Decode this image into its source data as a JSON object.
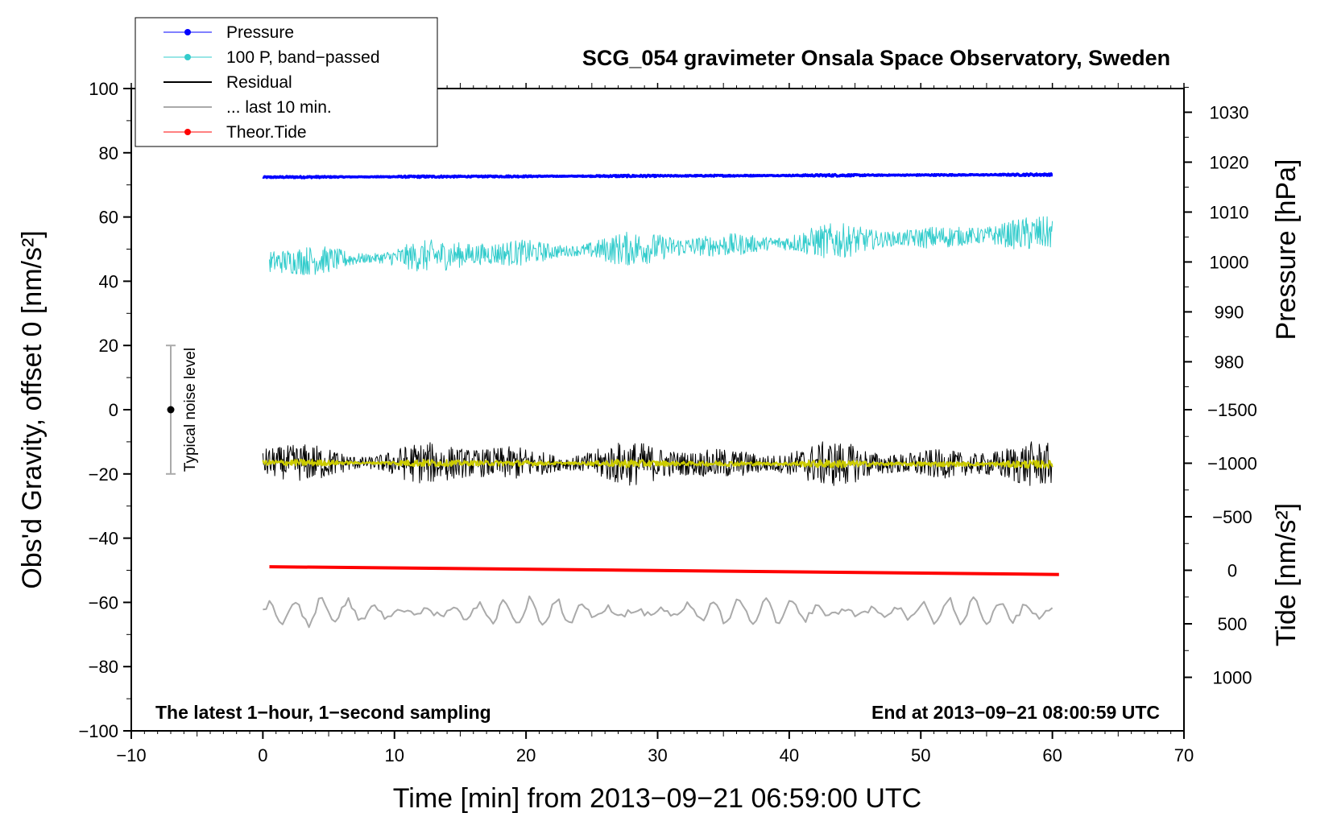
{
  "chart_data": {
    "type": "line",
    "title": "SCG_054 gravimeter Onsala Space Observatory, Sweden",
    "xlabel": "Time [min] from 2013−09−21 06:59:00 UTC",
    "ylabel_left": "Obs'd Gravity, offset 0 [nm/s²]",
    "ylabel_right_top": "Pressure [hPa]",
    "ylabel_right_bottom": "Tide [nm/s²]",
    "xlim": [
      -10,
      70
    ],
    "ylim": [
      -100,
      100
    ],
    "x_ticks": [
      "−10",
      "0",
      "10",
      "20",
      "30",
      "40",
      "50",
      "60",
      "70"
    ],
    "y_ticks": [
      "−100",
      "−80",
      "−60",
      "−40",
      "−20",
      "0",
      "20",
      "40",
      "60",
      "80",
      "100"
    ],
    "pressure_axis": {
      "ticks": [
        "980",
        "990",
        "1000",
        "1010",
        "1020",
        "1030"
      ],
      "unit": "hPa"
    },
    "tide_axis": {
      "ticks": [
        "−1500",
        "−1000",
        "−500",
        "0",
        "500",
        "1000"
      ],
      "unit": "nm/s²"
    },
    "note_left": "The latest 1−hour, 1−second sampling",
    "note_right": "End at 2013−09−21 08:00:59 UTC",
    "noise_bar": {
      "label": "Typical noise level",
      "x": -7,
      "center": 0,
      "half_range": 20
    },
    "legend": [
      {
        "name": "Pressure",
        "color": "#0000ff",
        "marker": true
      },
      {
        "name": "100 P, band−passed",
        "color": "#33cccc",
        "marker": true
      },
      {
        "name": "Residual",
        "color": "#000000",
        "marker": false
      },
      {
        "name": "... last 10 min.",
        "color": "#aaaaaa",
        "marker": false
      },
      {
        "name": "Theor.Tide",
        "color": "#ff0000",
        "marker": true
      }
    ],
    "series": [
      {
        "name": "Pressure",
        "color": "#0000ff",
        "x_range": [
          0,
          60
        ],
        "y_start": 72.4,
        "y_end": 73.2,
        "noise_amp": 0.2,
        "width": 3.5
      },
      {
        "name": "100 P, band−passed",
        "color": "#33cccc",
        "x_range": [
          0.5,
          60
        ],
        "y_start": 46,
        "y_end": 55,
        "noise_amp": 3.5,
        "width": 1
      },
      {
        "name": "Residual",
        "color": "#000000",
        "x_range": [
          0,
          60
        ],
        "y_start": -16.5,
        "y_end": -17,
        "noise_amp": 4.5,
        "width": 1
      },
      {
        "name": "Residual (smoothed)",
        "color": "#cccc00",
        "x_range": [
          0,
          60
        ],
        "y_start": -16.5,
        "y_end": -17,
        "noise_amp": 0.8,
        "width": 2
      },
      {
        "name": "Theor.Tide",
        "color": "#ff0000",
        "x_range": [
          0.5,
          60.5
        ],
        "y_start": -48.9,
        "y_end": -51.3,
        "noise_amp": 0,
        "width": 4
      },
      {
        "name": "... last 10 min.",
        "color": "#aaaaaa",
        "x_range": [
          0,
          60
        ],
        "y_start": -63,
        "y_end": -63,
        "noise_amp": 3.5,
        "width": 2
      }
    ]
  }
}
